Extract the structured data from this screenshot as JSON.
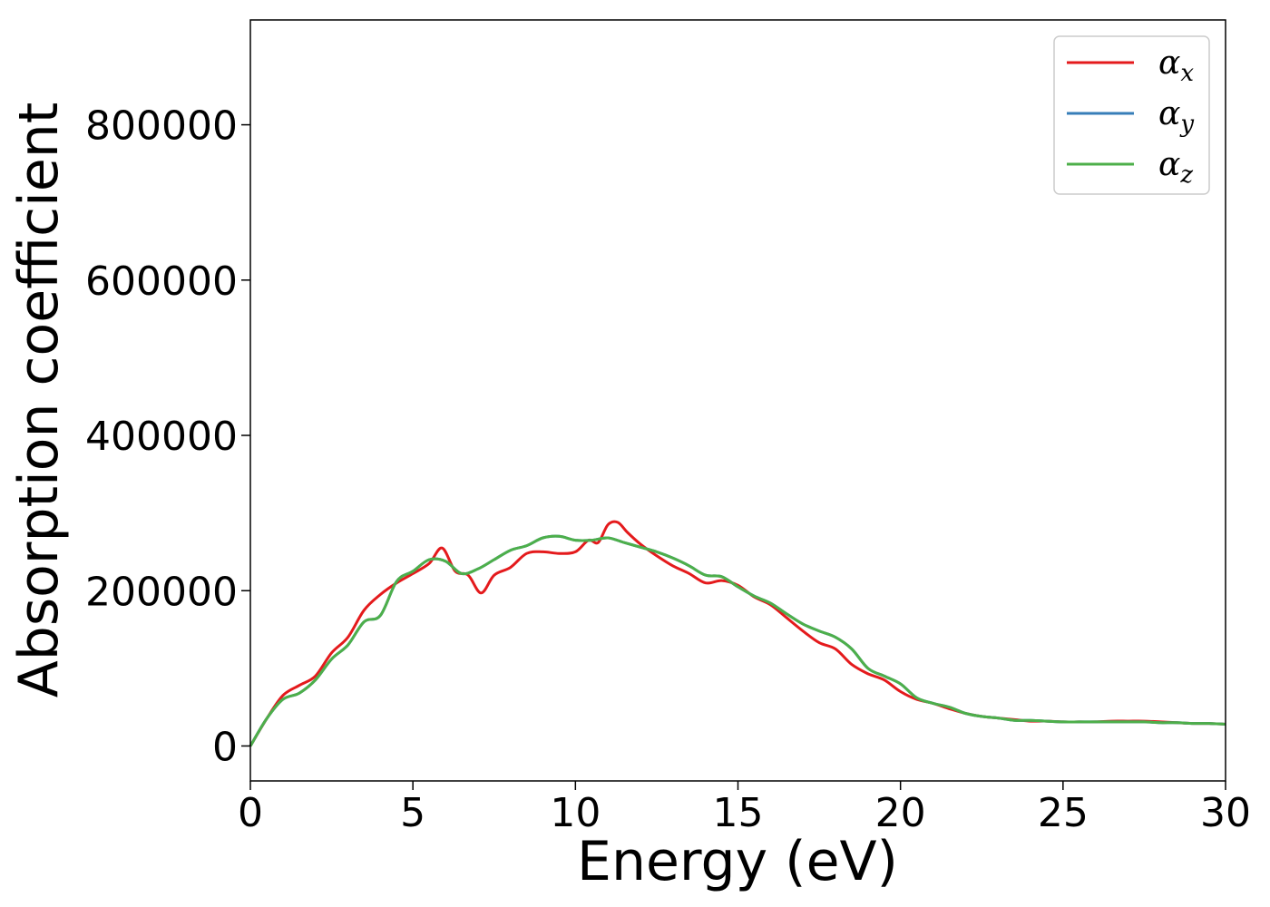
{
  "chart_data": {
    "type": "line",
    "title": "",
    "xlabel": "Energy (eV)",
    "ylabel": "Absorption coefficient",
    "xlim": [
      0,
      30
    ],
    "ylim": [
      -45000,
      935000
    ],
    "xticks": [
      "0",
      "5",
      "10",
      "15",
      "20",
      "25",
      "30"
    ],
    "yticks": [
      "0",
      "200000",
      "400000",
      "600000",
      "800000"
    ],
    "grid": false,
    "legend_position": "top-right",
    "series": [
      {
        "name": "α",
        "subscript": "x",
        "color": "#e41a1c",
        "x": [
          0,
          0.5,
          1,
          1.5,
          2,
          2.5,
          3,
          3.5,
          4,
          4.5,
          5,
          5.5,
          5.9,
          6.3,
          6.7,
          7.1,
          7.5,
          8,
          8.5,
          9,
          9.5,
          10,
          10.4,
          10.7,
          11,
          11.3,
          11.6,
          12,
          12.5,
          13,
          13.5,
          14,
          14.5,
          15,
          15.5,
          16,
          16.5,
          17,
          17.5,
          18,
          18.5,
          19,
          19.5,
          20,
          20.5,
          21,
          21.5,
          22,
          22.5,
          23,
          23.5,
          24,
          24.5,
          25,
          25.5,
          26,
          26.5,
          27,
          27.5,
          28,
          28.5,
          29,
          29.5,
          30
        ],
        "y": [
          0,
          35000,
          65000,
          78000,
          90000,
          120000,
          140000,
          175000,
          195000,
          210000,
          222000,
          235000,
          255000,
          225000,
          220000,
          197000,
          220000,
          230000,
          248000,
          250000,
          248000,
          250000,
          265000,
          262000,
          285000,
          288000,
          275000,
          260000,
          245000,
          232000,
          222000,
          210000,
          213000,
          207000,
          192000,
          182000,
          165000,
          148000,
          133000,
          125000,
          105000,
          93000,
          85000,
          70000,
          60000,
          55000,
          48000,
          42000,
          38000,
          36000,
          34000,
          32000,
          32000,
          31000,
          31000,
          31000,
          32000,
          32000,
          32000,
          31000,
          30000,
          29000,
          29000,
          28000
        ]
      },
      {
        "name": "α",
        "subscript": "y",
        "color": "#377eb8",
        "x": [
          0,
          0.5,
          1,
          1.5,
          2,
          2.5,
          3,
          3.5,
          4,
          4.5,
          5,
          5.5,
          6,
          6.5,
          7,
          7.5,
          8,
          8.5,
          9,
          9.5,
          10,
          10.5,
          11,
          11.5,
          12,
          12.5,
          13,
          13.5,
          14,
          14.5,
          15,
          15.5,
          16,
          16.5,
          17,
          17.5,
          18,
          18.5,
          19,
          19.5,
          20,
          20.5,
          21,
          21.5,
          22,
          22.5,
          23,
          23.5,
          24,
          24.5,
          25,
          25.5,
          26,
          26.5,
          27,
          27.5,
          28,
          28.5,
          29,
          29.5,
          30
        ],
        "y": [
          0,
          35000,
          60000,
          68000,
          85000,
          112000,
          130000,
          160000,
          168000,
          212000,
          225000,
          240000,
          238000,
          222000,
          228000,
          240000,
          252000,
          258000,
          268000,
          270000,
          265000,
          265000,
          268000,
          262000,
          256000,
          250000,
          242000,
          232000,
          220000,
          218000,
          205000,
          193000,
          184000,
          170000,
          157000,
          148000,
          140000,
          125000,
          100000,
          90000,
          80000,
          62000,
          55000,
          50000,
          42000,
          38000,
          36000,
          33000,
          33000,
          32000,
          31000,
          31000,
          31000,
          31000,
          31000,
          31000,
          30000,
          30000,
          29000,
          29000,
          28000
        ]
      },
      {
        "name": "α",
        "subscript": "z",
        "color": "#4daf4a",
        "x": [
          0,
          0.5,
          1,
          1.5,
          2,
          2.5,
          3,
          3.5,
          4,
          4.5,
          5,
          5.5,
          6,
          6.5,
          7,
          7.5,
          8,
          8.5,
          9,
          9.5,
          10,
          10.5,
          11,
          11.5,
          12,
          12.5,
          13,
          13.5,
          14,
          14.5,
          15,
          15.5,
          16,
          16.5,
          17,
          17.5,
          18,
          18.5,
          19,
          19.5,
          20,
          20.5,
          21,
          21.5,
          22,
          22.5,
          23,
          23.5,
          24,
          24.5,
          25,
          25.5,
          26,
          26.5,
          27,
          27.5,
          28,
          28.5,
          29,
          29.5,
          30
        ],
        "y": [
          0,
          35000,
          60000,
          68000,
          85000,
          112000,
          130000,
          160000,
          168000,
          212000,
          225000,
          240000,
          238000,
          222000,
          228000,
          240000,
          252000,
          258000,
          268000,
          270000,
          265000,
          265000,
          268000,
          262000,
          256000,
          250000,
          242000,
          232000,
          220000,
          218000,
          205000,
          193000,
          184000,
          170000,
          157000,
          148000,
          140000,
          125000,
          100000,
          90000,
          80000,
          62000,
          55000,
          50000,
          42000,
          38000,
          36000,
          33000,
          33000,
          32000,
          31000,
          31000,
          31000,
          31000,
          31000,
          31000,
          30000,
          30000,
          29000,
          29000,
          28000
        ]
      }
    ]
  }
}
